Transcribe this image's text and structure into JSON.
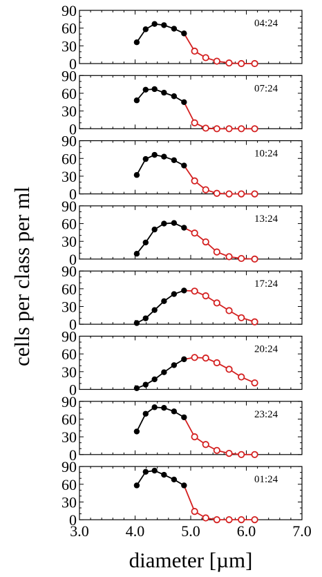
{
  "chart_data": {
    "type": "line",
    "ylabel": "cells per class per ml",
    "xlabel": "diameter [µm]",
    "xlim": [
      3.0,
      7.0
    ],
    "xticks": [
      "3.0",
      "4.0",
      "5.0",
      "6.0",
      "7.0"
    ],
    "ylim": [
      0,
      90
    ],
    "yticks": [
      "0",
      "30",
      "60",
      "90"
    ],
    "x": [
      4.03,
      4.19,
      4.35,
      4.52,
      4.7,
      4.88,
      5.07,
      5.27,
      5.47,
      5.69,
      5.91,
      6.15
    ],
    "filled_count": 6,
    "colors": {
      "filled": "#000000",
      "open": "#d42020"
    },
    "panels": [
      {
        "label": "04:24",
        "values": [
          36,
          58,
          67,
          65,
          59,
          51,
          21,
          10,
          4,
          1,
          0,
          0
        ]
      },
      {
        "label": "07:24",
        "values": [
          48,
          66,
          67,
          61,
          55,
          45,
          10,
          1,
          0,
          0,
          0,
          0
        ]
      },
      {
        "label": "10:24",
        "values": [
          32,
          59,
          66,
          63,
          57,
          48,
          22,
          7,
          1,
          0,
          0,
          0
        ]
      },
      {
        "label": "13:24",
        "values": [
          9,
          28,
          50,
          60,
          61,
          53,
          44,
          29,
          12,
          4,
          1,
          0
        ]
      },
      {
        "label": "17:24",
        "values": [
          2,
          10,
          24,
          39,
          51,
          57,
          56,
          48,
          36,
          23,
          11,
          4
        ]
      },
      {
        "label": "20:24",
        "values": [
          2,
          8,
          17,
          29,
          41,
          51,
          54,
          53,
          45,
          34,
          21,
          11
        ]
      },
      {
        "label": "23:24",
        "values": [
          39,
          69,
          80,
          79,
          73,
          63,
          30,
          17,
          7,
          2,
          0,
          0
        ]
      },
      {
        "label": "01:24",
        "values": [
          58,
          81,
          83,
          76,
          68,
          58,
          14,
          3,
          0,
          0,
          0,
          0
        ]
      }
    ]
  }
}
